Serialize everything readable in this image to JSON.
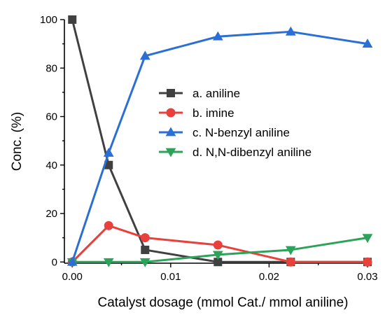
{
  "chart_data": {
    "type": "line",
    "title": "",
    "xlabel": "Catalyst dosage  (mmol Cat./ mmol  aniline)",
    "ylabel": "Conc. (%)",
    "xlim": [
      -0.0008,
      0.03
    ],
    "ylim": [
      -0.5,
      100
    ],
    "x_ticks": [
      0.0,
      0.01,
      0.02,
      0.03
    ],
    "x_tick_labels": [
      "0.00",
      "0.01",
      "0.02",
      "0.03"
    ],
    "y_ticks": [
      0,
      20,
      40,
      60,
      80,
      100
    ],
    "y_tick_labels": [
      "0",
      "20",
      "40",
      "60",
      "80",
      "100"
    ],
    "grid": false,
    "legend_position": "center",
    "series": [
      {
        "name": "a. aniline",
        "color": "#404040",
        "marker": "square",
        "x": [
          0.0,
          0.0037,
          0.0074,
          0.0148,
          0.0222,
          0.03
        ],
        "y": [
          100,
          40,
          5,
          0,
          0,
          0
        ]
      },
      {
        "name": "b. imine",
        "color": "#e8413c",
        "marker": "circle",
        "x": [
          0.0,
          0.0037,
          0.0074,
          0.0148,
          0.0222,
          0.03
        ],
        "y": [
          0,
          15,
          10,
          7,
          0,
          0
        ]
      },
      {
        "name": "c. N-benzyl aniline",
        "color": "#2a6fd6",
        "marker": "triangle-up",
        "x": [
          0.0,
          0.0037,
          0.0074,
          0.0148,
          0.0222,
          0.03
        ],
        "y": [
          0,
          45,
          85,
          93,
          95,
          90
        ]
      },
      {
        "name": "d. N,N-dibenzyl aniline",
        "color": "#2da35a",
        "marker": "triangle-down",
        "x": [
          0.0,
          0.0037,
          0.0074,
          0.0148,
          0.0222,
          0.03
        ],
        "y": [
          0,
          0,
          0,
          3,
          5,
          10
        ]
      }
    ]
  }
}
